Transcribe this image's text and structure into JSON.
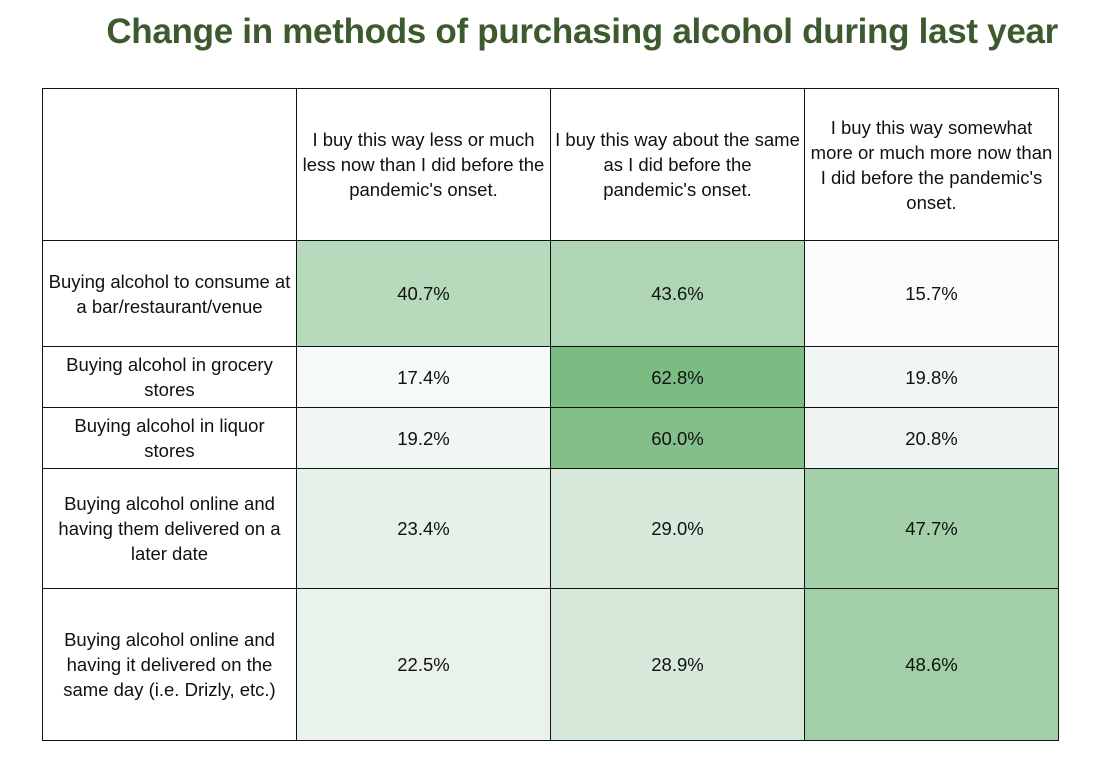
{
  "chart_data": {
    "type": "heatmap",
    "title": "Change in methods of purchasing alcohol during last year",
    "columns": [
      "I buy this way less or much less now than I did before the pandemic's onset.",
      "I buy this way about the same as I did before the pandemic's onset.",
      "I buy this way somewhat more or much more now than I did before the pandemic's onset."
    ],
    "rows": [
      {
        "label": "Buying alcohol to consume at a bar/restaurant/venue",
        "values": [
          40.7,
          43.6,
          15.7
        ],
        "display": [
          "40.7%",
          "43.6%",
          "15.7%"
        ]
      },
      {
        "label": "Buying alcohol in grocery stores",
        "values": [
          17.4,
          62.8,
          19.8
        ],
        "display": [
          "17.4%",
          "62.8%",
          "19.8%"
        ]
      },
      {
        "label": "Buying alcohol in liquor stores",
        "values": [
          19.2,
          60.0,
          20.8
        ],
        "display": [
          "19.2%",
          "60.0%",
          "20.8%"
        ]
      },
      {
        "label": "Buying alcohol online and having them delivered on a later date",
        "values": [
          23.4,
          29.0,
          47.7
        ],
        "display": [
          "23.4%",
          "29.0%",
          "47.7%"
        ]
      },
      {
        "label": "Buying alcohol online and having it delivered on the same day (i.e. Drizly, etc.)",
        "values": [
          22.5,
          28.9,
          48.6
        ],
        "display": [
          "22.5%",
          "28.9%",
          "48.6%"
        ]
      }
    ],
    "color_scale": {
      "low": "#fbfbfd",
      "high": "#7bbc82"
    },
    "title_color": "#3d5a2f"
  }
}
